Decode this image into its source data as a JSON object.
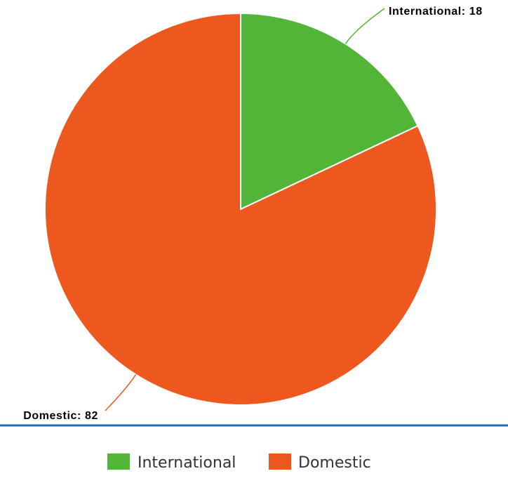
{
  "chart_data": {
    "type": "pie",
    "categories": [
      "International",
      "Domestic"
    ],
    "values": [
      18,
      82
    ],
    "colors": [
      "#52b538",
      "#ec581e"
    ],
    "data_labels": [
      "International: 18",
      "Domestic: 82"
    ],
    "title": "",
    "legend": {
      "position": "bottom",
      "entries": [
        "International",
        "Domestic"
      ]
    },
    "separator_color": "#1f6fb4"
  }
}
